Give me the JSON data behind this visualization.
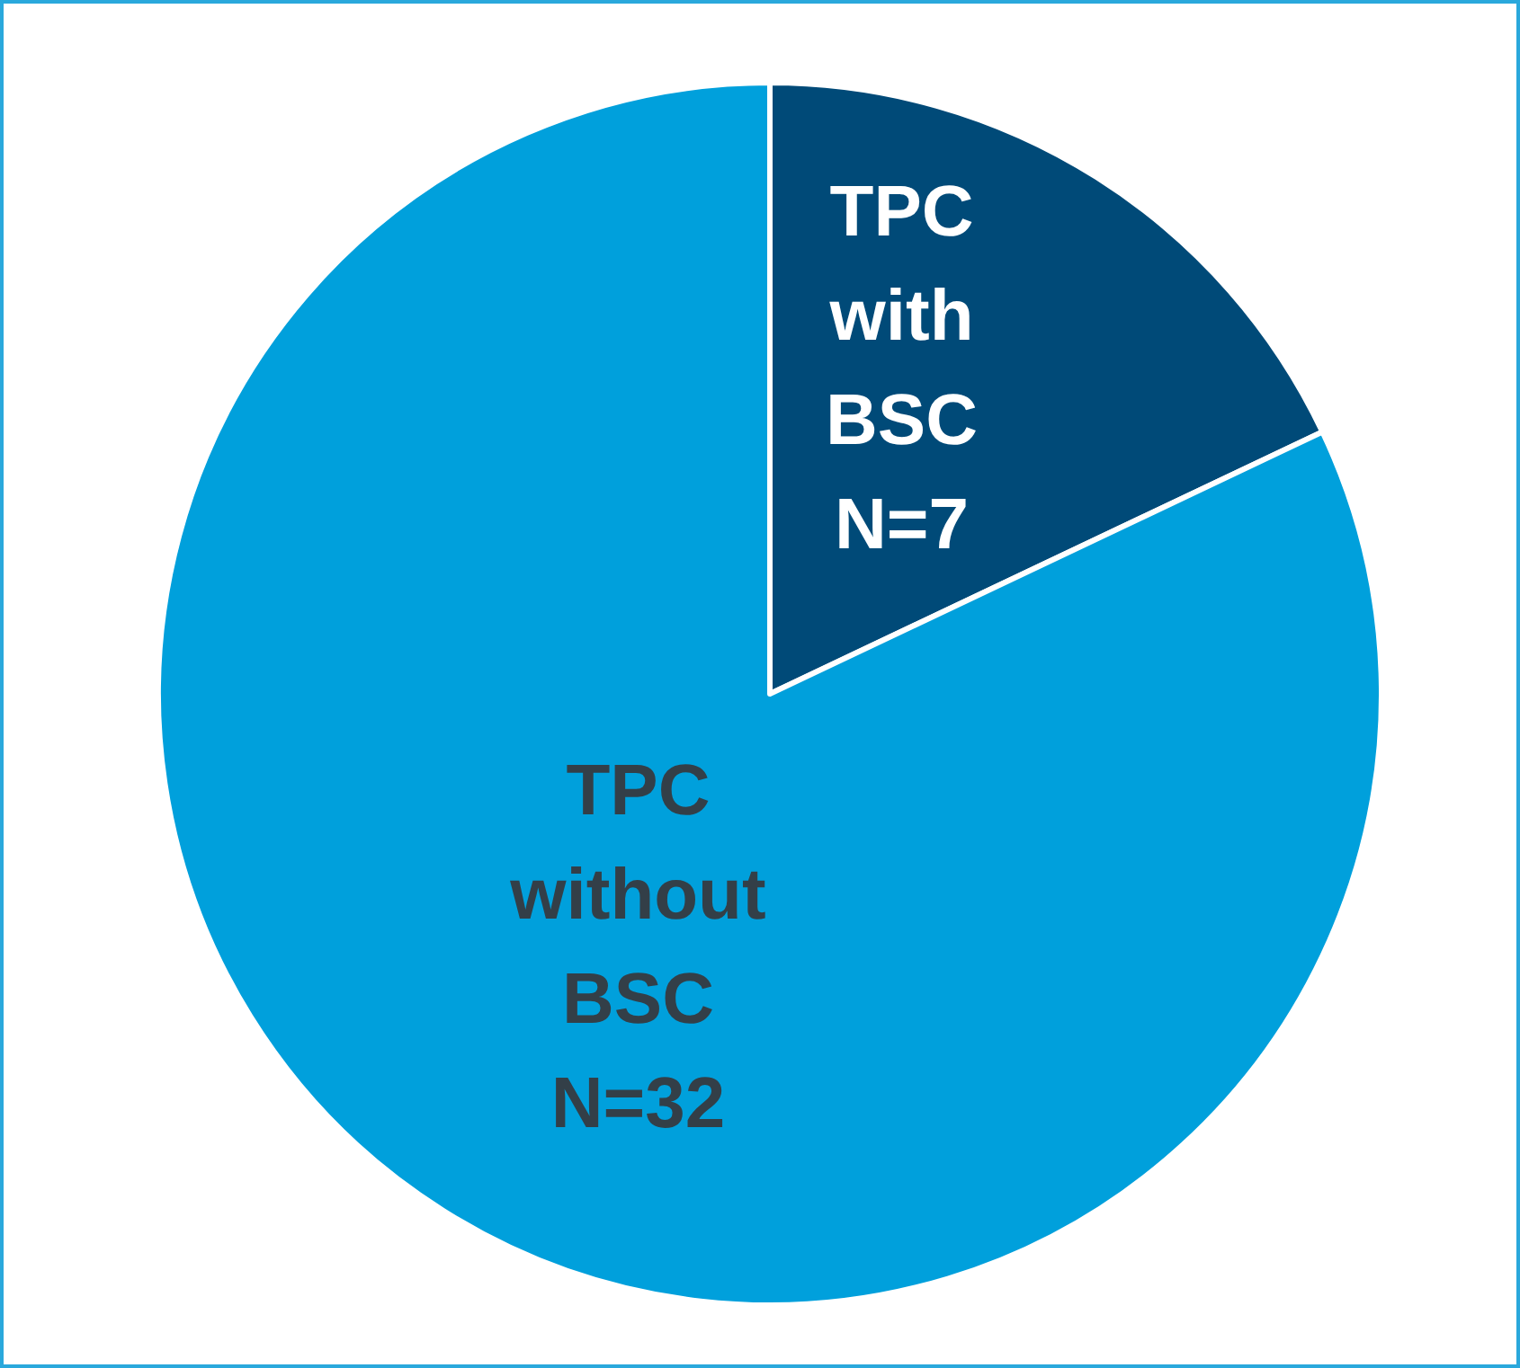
{
  "chart_data": {
    "type": "pie",
    "categories": [
      "TPC with BSC",
      "TPC without BSC"
    ],
    "values": [
      7,
      32
    ],
    "colors": [
      "#004a78",
      "#00a0dc"
    ],
    "value_labels": [
      "N=7",
      "N=32"
    ]
  }
}
